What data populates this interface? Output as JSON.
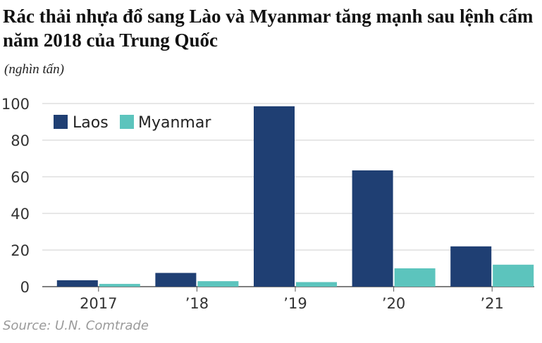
{
  "title": "Rác thải nhựa đổ sang Lào và Myanmar tăng mạnh sau lệnh cấm năm 2018 của Trung Quốc",
  "unit_label": "(nghìn tấn)",
  "source": "Source: U.N. Comtrade",
  "colors": {
    "laos": "#1f3f73",
    "myanmar": "#5cc4bd",
    "grid": "#cfcfcf",
    "axis": "#555555"
  },
  "chart_data": {
    "type": "bar",
    "title": "Rác thải nhựa đổ sang Lào và Myanmar tăng mạnh sau lệnh cấm năm 2018 của Trung Quốc",
    "xlabel": "",
    "ylabel": "(nghìn tấn)",
    "categories": [
      "2017",
      "’18",
      "’19",
      "’20",
      "’21"
    ],
    "series": [
      {
        "name": "Laos",
        "values": [
          3.5,
          7.5,
          98.5,
          63.5,
          22
        ]
      },
      {
        "name": "Myanmar",
        "values": [
          1.5,
          3,
          2.5,
          10,
          12
        ]
      }
    ],
    "ylim": [
      0,
      100
    ],
    "yticks": [
      0,
      20,
      40,
      60,
      80,
      100
    ],
    "grid": true,
    "legend": "top-left"
  }
}
